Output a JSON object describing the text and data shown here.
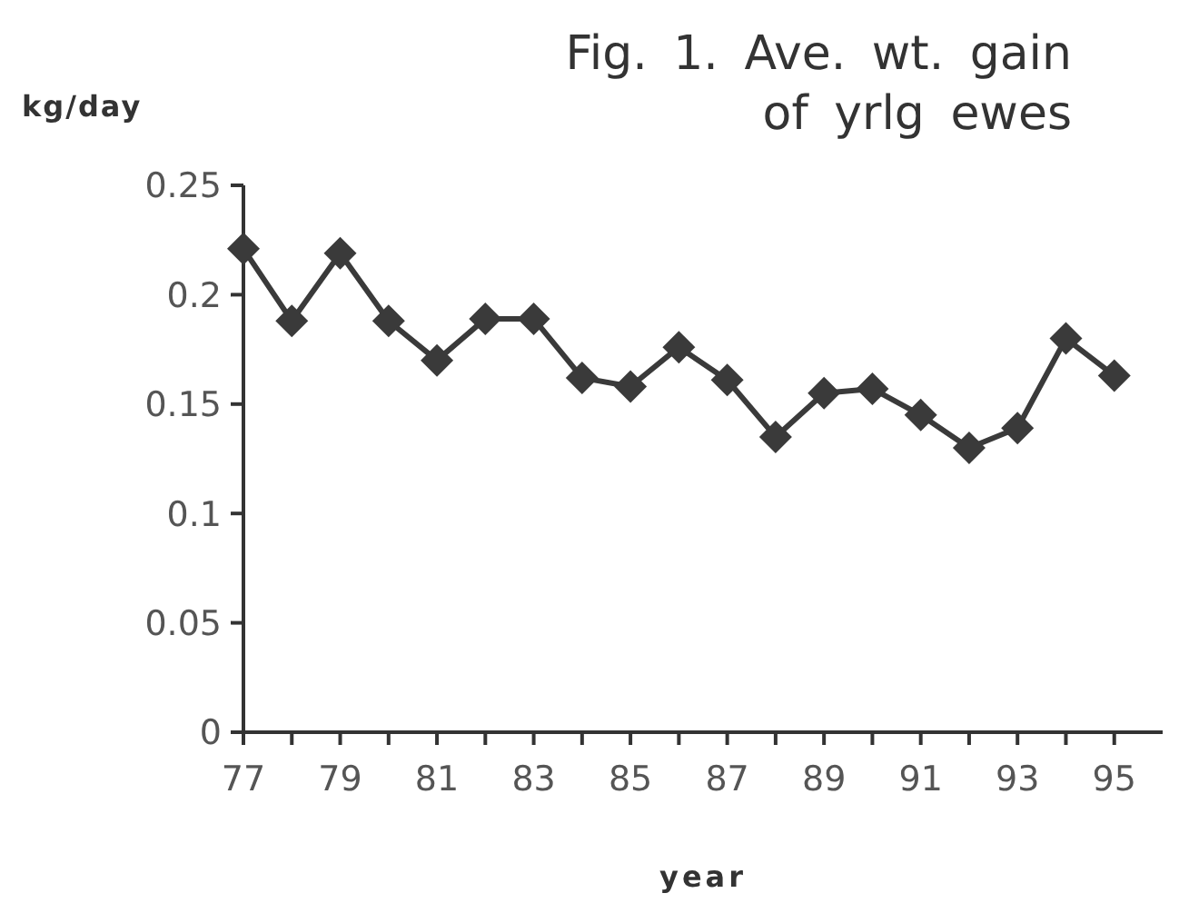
{
  "chart_data": {
    "type": "line",
    "title": "Fig. 1. Ave. wt. gain\nof yrlg ewes",
    "xlabel": "year",
    "ylabel": "kg/day",
    "x": [
      77,
      78,
      79,
      80,
      81,
      82,
      83,
      84,
      85,
      86,
      87,
      88,
      89,
      90,
      91,
      92,
      93,
      94,
      95
    ],
    "series": [
      {
        "color": "#3a3a3a",
        "values": [
          0.221,
          0.188,
          0.219,
          0.188,
          0.17,
          0.189,
          0.189,
          0.162,
          0.158,
          0.176,
          0.161,
          0.135,
          0.155,
          0.157,
          0.145,
          0.13,
          0.139,
          0.18,
          0.163
        ]
      }
    ],
    "xlim": [
      77,
      96
    ],
    "xticks": [
      77,
      {
        "value": 78,
        "label": null
      },
      79,
      {
        "value": 80,
        "label": null
      },
      81,
      {
        "value": 82,
        "label": null
      },
      83,
      {
        "value": 84,
        "label": null
      },
      85,
      {
        "value": 86,
        "label": null
      },
      87,
      {
        "value": 88,
        "label": null
      },
      89,
      {
        "value": 90,
        "label": null
      },
      91,
      {
        "value": 92,
        "label": null
      },
      93,
      {
        "value": 94,
        "label": null
      },
      95
    ],
    "ylim": [
      0,
      0.25
    ],
    "yticks": [
      0,
      0.05,
      0.1,
      0.15,
      0.2,
      0.25
    ],
    "grid": false,
    "marker": "diamond",
    "line_style": "solid"
  }
}
